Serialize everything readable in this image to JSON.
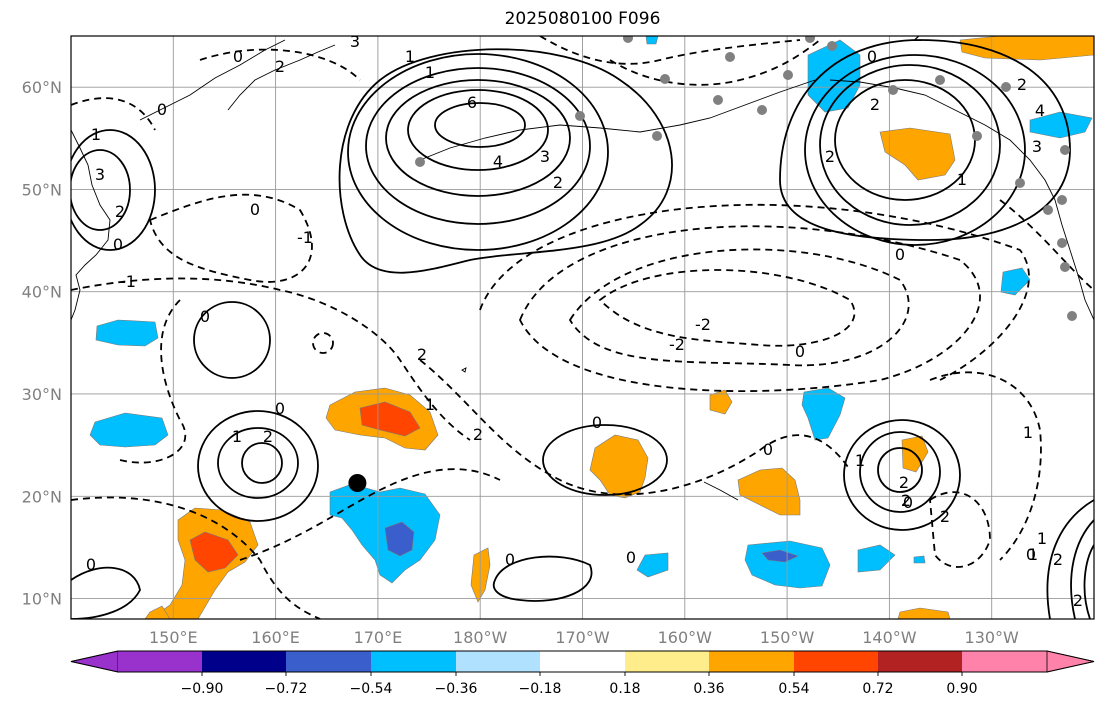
{
  "title": "2025080100 F096",
  "map": {
    "projection": "PlateCarree",
    "lon_range": [
      140,
      240
    ],
    "lat_range": [
      8,
      65
    ],
    "lon_ticks": [
      "150°E",
      "160°E",
      "170°E",
      "180°W",
      "170°W",
      "160°W",
      "150°W",
      "140°W",
      "130°W"
    ],
    "lat_ticks": [
      "10°N",
      "20°N",
      "30°N",
      "40°N",
      "50°N",
      "60°N"
    ],
    "gridlines": true,
    "grid_color": "#999999"
  },
  "contours": {
    "line_color": "#000000",
    "labels": [
      "0",
      "3",
      "2",
      "1",
      "0",
      "6",
      "4",
      "3",
      "2",
      "1",
      "0",
      "2",
      "2",
      "2",
      "1",
      "0",
      "1",
      "2",
      "3",
      "0",
      "-1",
      "0",
      "-1",
      "0",
      "-2",
      "-2",
      "0",
      "2",
      "0",
      "0",
      "1",
      "2",
      "1",
      "2",
      "0",
      "0",
      "2",
      "1",
      "2",
      "0",
      "1",
      "2",
      "0",
      "1",
      "2",
      "0",
      "0",
      "1",
      "2",
      "2",
      "3",
      "4"
    ],
    "marker_point": {
      "lon": 168.0,
      "lat": 21.3,
      "color": "#000000"
    },
    "gray_dots_color": "#808080"
  },
  "colorbar": {
    "colors": [
      "#9932cc",
      "#00008b",
      "#3a5fcd",
      "#00bfff",
      "#b0e2ff",
      "#ffffff",
      "#ffec8b",
      "#ffa500",
      "#ff4500",
      "#b22222",
      "#ff82ab"
    ],
    "tick_labels": [
      "−0.90",
      "−0.72",
      "−0.54",
      "−0.36",
      "−0.18",
      "0.18",
      "0.36",
      "0.54",
      "0.72",
      "0.90"
    ],
    "extend": "both"
  },
  "shading_colors": {
    "blue_light": "#00bfff",
    "blue_dark": "#3a5fcd",
    "orange": "#ffa500",
    "red": "#ff4500"
  }
}
